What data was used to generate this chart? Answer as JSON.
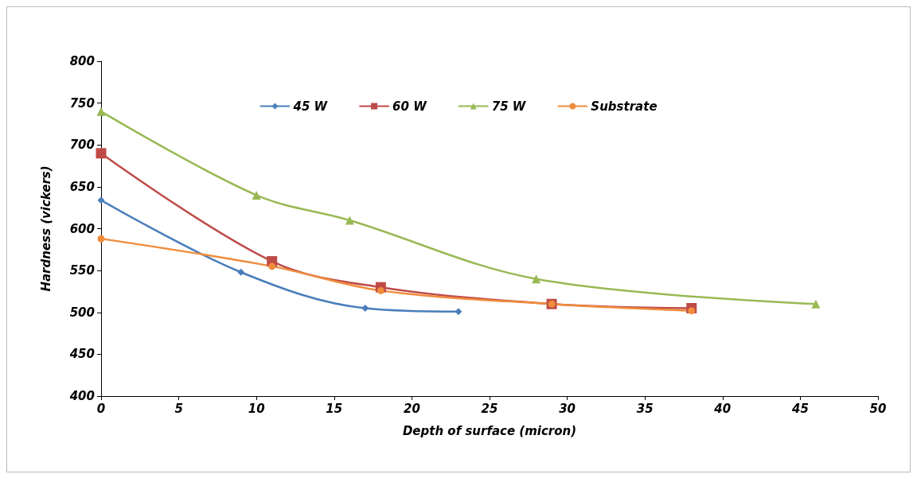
{
  "chart_data": {
    "type": "line",
    "xlabel": "Depth of surface (micron)",
    "ylabel": "Hardness (vickers)",
    "xlim": [
      0,
      50
    ],
    "xticks": [
      0,
      5,
      10,
      15,
      20,
      25,
      30,
      35,
      40,
      45,
      50
    ],
    "ylim": [
      400,
      800
    ],
    "yticks": [
      400,
      450,
      500,
      550,
      600,
      650,
      700,
      750,
      800
    ],
    "grid": false,
    "legend": "top",
    "line_style": "solid",
    "series": [
      {
        "name": "45 W",
        "color": "#4a7ebb",
        "marker": "diamond",
        "x": [
          0,
          9,
          17,
          23
        ],
        "values": [
          634,
          548,
          505,
          501
        ]
      },
      {
        "name": "60 W",
        "color": "#be4b48",
        "marker": "square",
        "x": [
          0,
          11,
          18,
          29,
          38
        ],
        "values": [
          690,
          561,
          530,
          510,
          505
        ]
      },
      {
        "name": "75 W",
        "color": "#98b954",
        "marker": "triangle",
        "x": [
          0,
          10,
          16,
          28,
          46
        ],
        "values": [
          740,
          640,
          610,
          540,
          510
        ]
      },
      {
        "name": "Substrate",
        "color": "#f08c3c",
        "marker": "circle",
        "x": [
          0,
          11,
          18,
          29,
          38
        ],
        "values": [
          588,
          555,
          526,
          510,
          502
        ]
      }
    ]
  }
}
